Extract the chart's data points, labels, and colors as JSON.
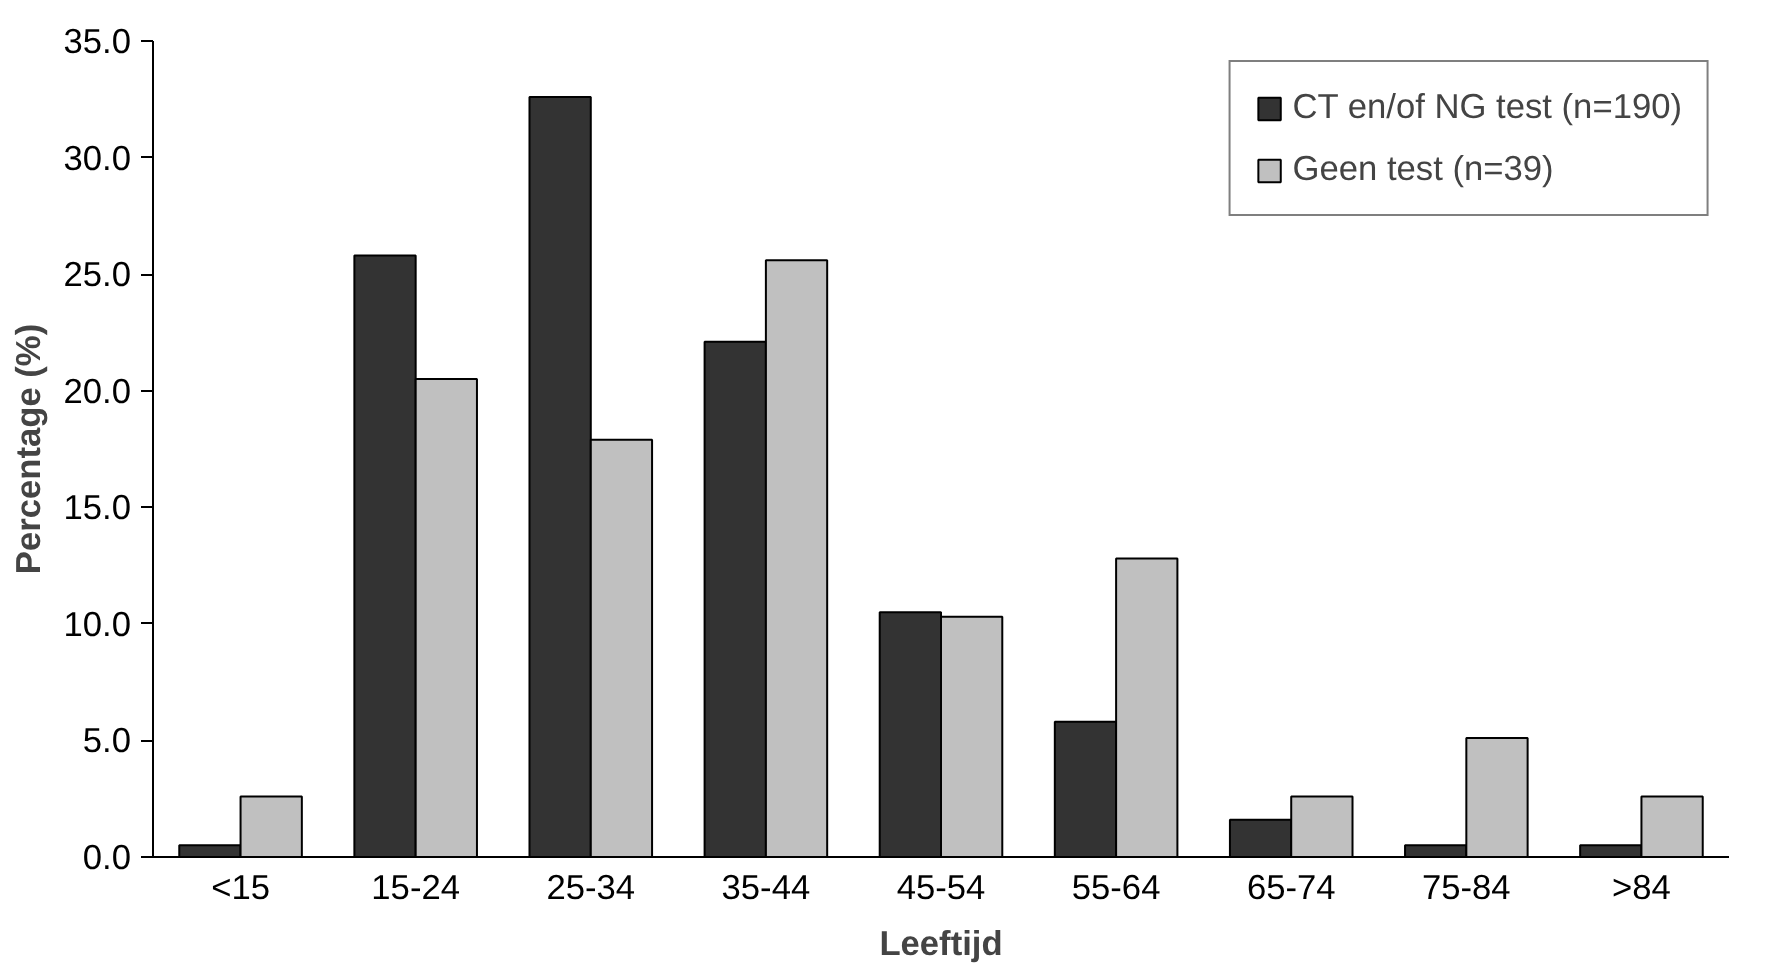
{
  "chart_data": {
    "type": "bar",
    "xlabel": "Leeftijd",
    "ylabel": "Percentage (%)",
    "categories": [
      "<15",
      "15-24",
      "25-34",
      "35-44",
      "45-54",
      "55-64",
      "65-74",
      "75-84",
      ">84"
    ],
    "series": [
      {
        "name": "CT en/of NG test (n=190)",
        "color": "#333333",
        "values": [
          0.5,
          25.8,
          32.6,
          22.1,
          10.5,
          5.8,
          1.6,
          0.5,
          0.5
        ]
      },
      {
        "name": "Geen test (n=39)",
        "color": "#c0c0c0",
        "values": [
          2.6,
          20.5,
          17.9,
          25.6,
          10.3,
          12.8,
          2.6,
          5.1,
          2.6
        ]
      }
    ],
    "ylim": [
      0,
      35
    ],
    "yticks": [
      {
        "value": 0,
        "label": "0.0"
      },
      {
        "value": 5,
        "label": "5.0"
      },
      {
        "value": 10,
        "label": "10.0"
      },
      {
        "value": 15,
        "label": "15.0"
      },
      {
        "value": 20,
        "label": "20.0"
      },
      {
        "value": 25,
        "label": "25.0"
      },
      {
        "value": 30,
        "label": "30.0"
      },
      {
        "value": 35,
        "label": "35.0"
      }
    ],
    "grid": false,
    "legend": "top right"
  }
}
